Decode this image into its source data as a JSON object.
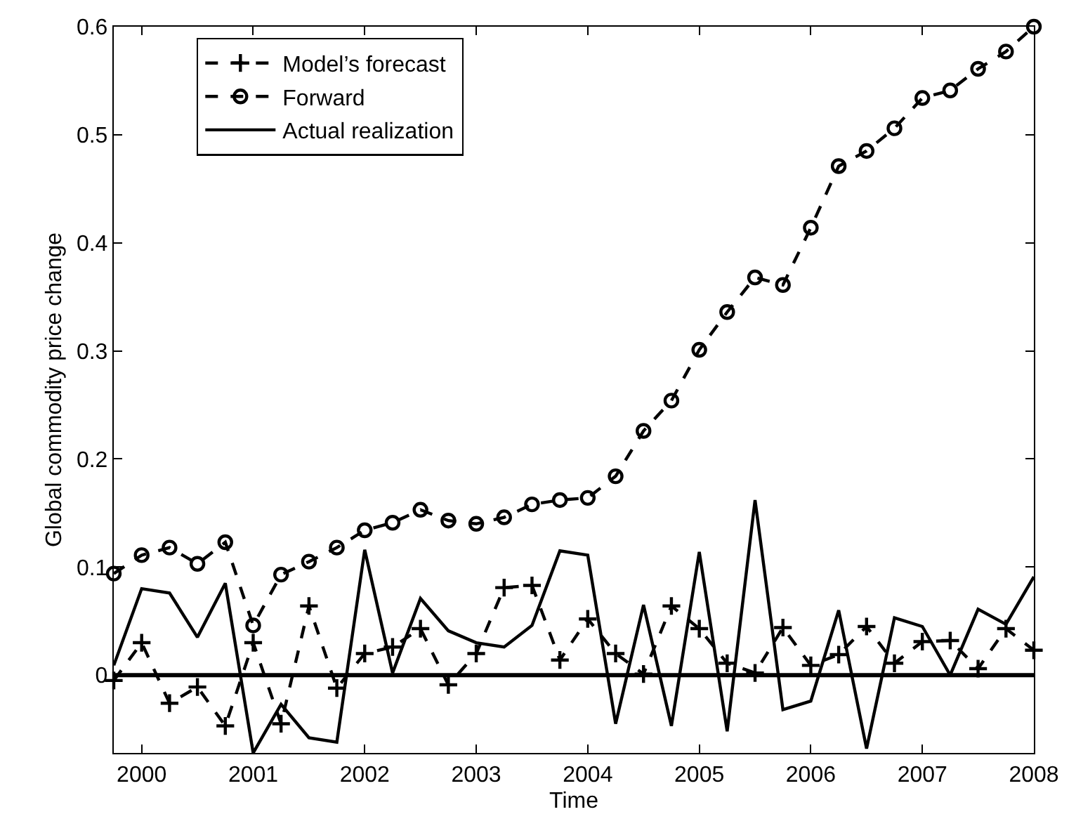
{
  "chart_data": {
    "type": "line",
    "xlabel": "Time",
    "ylabel": "Global commodity price change",
    "x": [
      1999.75,
      2000.0,
      2000.25,
      2000.5,
      2000.75,
      2001.0,
      2001.25,
      2001.5,
      2001.75,
      2002.0,
      2002.25,
      2002.5,
      2002.75,
      2003.0,
      2003.25,
      2003.5,
      2003.75,
      2004.0,
      2004.25,
      2004.5,
      2004.75,
      2005.0,
      2005.25,
      2005.5,
      2005.75,
      2006.0,
      2006.25,
      2006.5,
      2006.75,
      2007.0,
      2007.25,
      2007.5,
      2007.75,
      2008.0
    ],
    "series": [
      {
        "name": "Model’s forecast",
        "color": "#000000",
        "marker": "cross",
        "line_style": "dashed",
        "values": [
          -0.005,
          0.03,
          -0.026,
          -0.011,
          -0.047,
          0.03,
          -0.045,
          0.064,
          -0.012,
          0.02,
          0.026,
          0.043,
          -0.009,
          0.02,
          0.081,
          0.083,
          0.014,
          0.052,
          0.02,
          0.001,
          0.064,
          0.043,
          0.011,
          0.002,
          0.044,
          0.009,
          0.019,
          0.045,
          0.011,
          0.031,
          0.032,
          0.006,
          0.043,
          0.023
        ]
      },
      {
        "name": "Forward",
        "color": "#000000",
        "marker": "circle",
        "line_style": "dashed",
        "values": [
          0.094,
          0.111,
          0.118,
          0.103,
          0.123,
          0.046,
          0.093,
          0.105,
          0.118,
          0.134,
          0.141,
          0.153,
          0.143,
          0.14,
          0.146,
          0.158,
          0.162,
          0.164,
          0.184,
          0.226,
          0.254,
          0.301,
          0.336,
          0.368,
          0.361,
          0.414,
          0.471,
          0.485,
          0.506,
          0.534,
          0.541,
          0.561,
          0.577,
          0.6
        ]
      },
      {
        "name": "Actual realization",
        "color": "#000000",
        "marker": "none",
        "line_style": "solid",
        "values": [
          0.009,
          0.08,
          0.076,
          0.035,
          0.085,
          -0.072,
          -0.027,
          -0.058,
          -0.062,
          0.116,
          0.002,
          0.071,
          0.041,
          0.03,
          0.026,
          0.046,
          0.115,
          0.111,
          -0.045,
          0.065,
          -0.047,
          0.114,
          -0.052,
          0.162,
          -0.032,
          -0.024,
          0.06,
          -0.068,
          0.053,
          0.045,
          0.0,
          0.061,
          0.047,
          0.091
        ]
      }
    ],
    "xlim": [
      1999.75,
      2008.0
    ],
    "xticks": [
      2000,
      2001,
      2002,
      2003,
      2004,
      2005,
      2006,
      2007,
      2008
    ],
    "ylim": [
      -0.072,
      0.6
    ],
    "yticks": [
      0,
      0.1,
      0.2,
      0.3,
      0.4,
      0.5,
      0.6
    ],
    "ref_lines": [
      {
        "axis": "y",
        "value": 0,
        "label": null,
        "color": "#000000",
        "line_style": "solid"
      }
    ],
    "legend": "top left"
  }
}
